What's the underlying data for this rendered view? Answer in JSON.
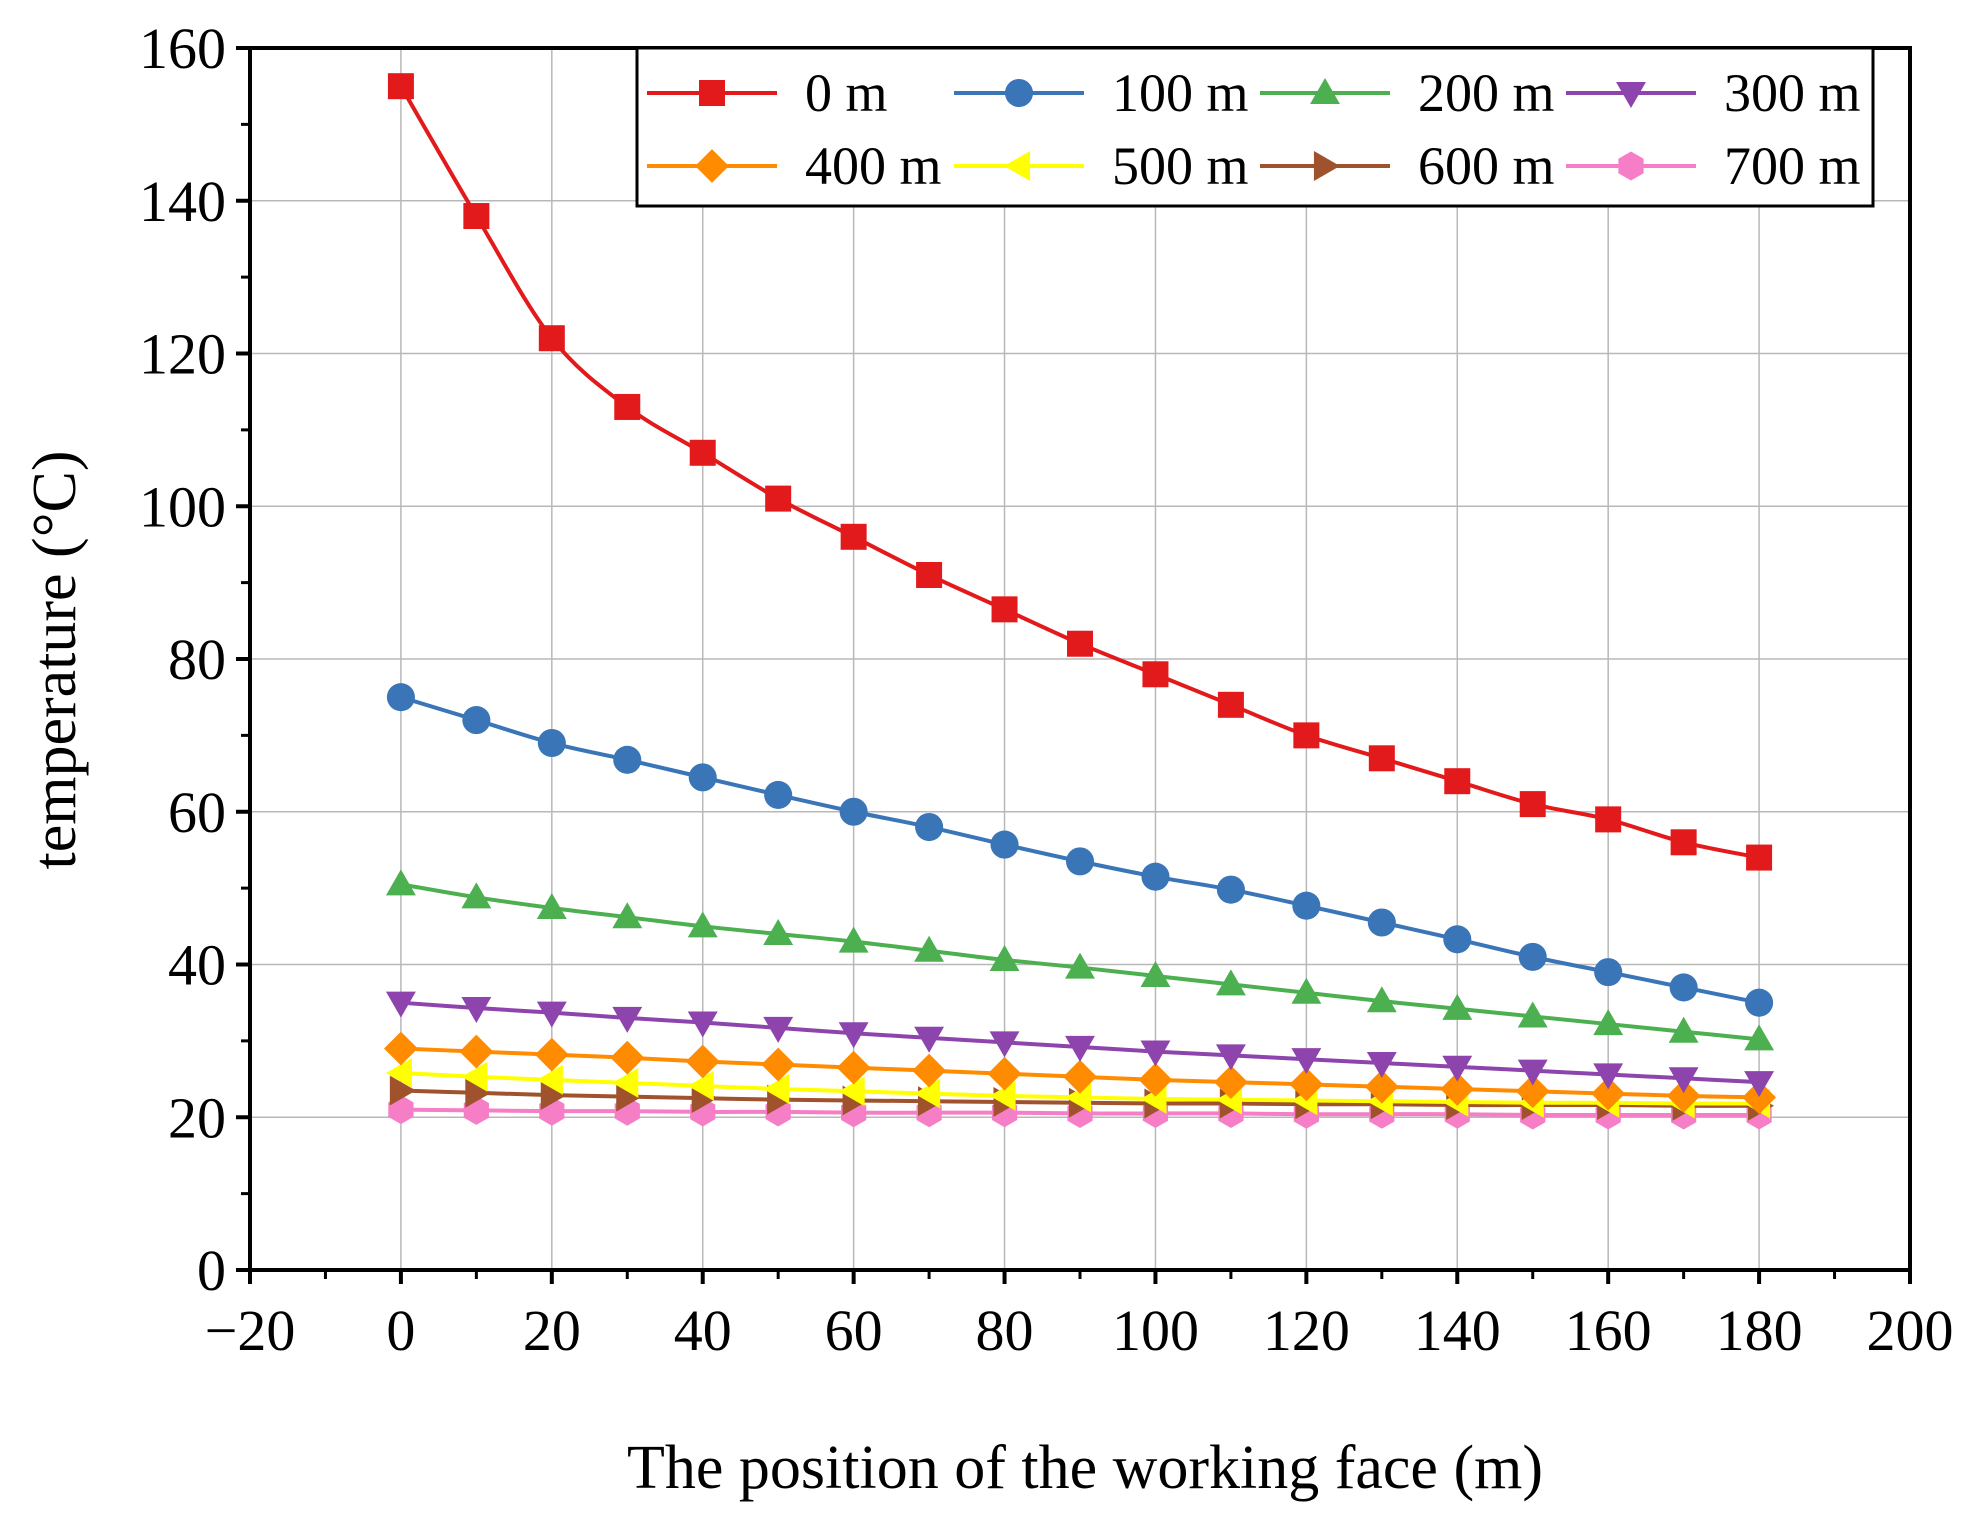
{
  "chart_data": {
    "type": "line",
    "title": "",
    "xlabel": "The position of the working face (m)",
    "ylabel": "temperature (°C)",
    "xlim": [
      -20,
      200
    ],
    "ylim": [
      0,
      160
    ],
    "xticks": [
      -20,
      0,
      20,
      40,
      60,
      80,
      100,
      120,
      140,
      160,
      180,
      200
    ],
    "xtick_labels": [
      "−20",
      "0",
      "20",
      "40",
      "60",
      "80",
      "100",
      "120",
      "140",
      "160",
      "180",
      "200"
    ],
    "yticks": [
      0,
      20,
      40,
      60,
      80,
      100,
      120,
      140,
      160
    ],
    "ytick_labels": [
      "0",
      "20",
      "40",
      "60",
      "80",
      "100",
      "120",
      "140",
      "160"
    ],
    "grid": true,
    "legend_position": "top-right",
    "x": [
      0,
      10,
      20,
      30,
      40,
      50,
      60,
      70,
      80,
      90,
      100,
      110,
      120,
      130,
      140,
      150,
      160,
      170,
      180
    ],
    "series": [
      {
        "name": "0 m",
        "color": "#e31a1c",
        "marker": "square",
        "values": [
          155,
          138,
          122,
          113,
          107,
          101,
          96,
          91,
          86.5,
          82,
          78,
          74,
          70,
          67,
          64,
          61,
          59,
          56,
          54
        ]
      },
      {
        "name": "100 m",
        "color": "#3a75b8",
        "marker": "circle",
        "values": [
          75,
          72,
          69,
          66.8,
          64.5,
          62.2,
          60,
          58,
          55.7,
          53.5,
          51.5,
          49.8,
          47.7,
          45.5,
          43.3,
          41,
          39,
          37,
          35
        ]
      },
      {
        "name": "200 m",
        "color": "#4caf50",
        "marker": "triangle-up",
        "values": [
          50.5,
          48.8,
          47.4,
          46.2,
          45,
          44,
          43,
          41.8,
          40.6,
          39.6,
          38.5,
          37.4,
          36.3,
          35.2,
          34.2,
          33.2,
          32.2,
          31.2,
          30.2
        ]
      },
      {
        "name": "300 m",
        "color": "#8e44ad",
        "marker": "triangle-down",
        "values": [
          35,
          34.3,
          33.7,
          33,
          32.4,
          31.7,
          31,
          30.4,
          29.8,
          29.2,
          28.6,
          28.1,
          27.6,
          27.1,
          26.6,
          26.1,
          25.6,
          25.1,
          24.6
        ]
      },
      {
        "name": "400 m",
        "color": "#ff8c00",
        "marker": "diamond",
        "values": [
          29,
          28.6,
          28.2,
          27.8,
          27.3,
          26.9,
          26.5,
          26.1,
          25.7,
          25.3,
          24.9,
          24.6,
          24.3,
          24,
          23.7,
          23.4,
          23.1,
          22.8,
          22.6
        ]
      },
      {
        "name": "500 m",
        "color": "#ffff00",
        "marker": "triangle-left",
        "values": [
          25.8,
          25.3,
          24.9,
          24.5,
          24.1,
          23.7,
          23.4,
          23.1,
          22.8,
          22.6,
          22.4,
          22.3,
          22.2,
          22.1,
          22,
          21.9,
          21.9,
          21.8,
          21.8
        ]
      },
      {
        "name": "600 m",
        "color": "#a0522d",
        "marker": "triangle-right",
        "values": [
          23.5,
          23.2,
          22.9,
          22.7,
          22.5,
          22.3,
          22.2,
          22.1,
          22,
          21.9,
          21.8,
          21.8,
          21.7,
          21.7,
          21.6,
          21.6,
          21.6,
          21.5,
          21.5
        ]
      },
      {
        "name": "700 m",
        "color": "#f57ec6",
        "marker": "hexagon",
        "values": [
          21,
          20.9,
          20.8,
          20.8,
          20.7,
          20.7,
          20.6,
          20.6,
          20.6,
          20.5,
          20.5,
          20.5,
          20.4,
          20.4,
          20.4,
          20.3,
          20.3,
          20.3,
          20.3
        ]
      }
    ]
  }
}
